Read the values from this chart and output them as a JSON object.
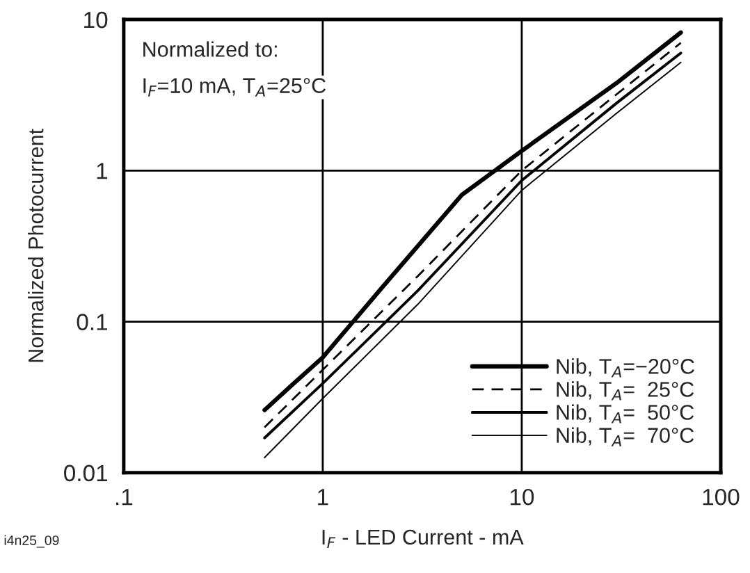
{
  "chart_data": {
    "type": "line",
    "xlabel": "I$_{F}$ - LED Current - mA",
    "ylabel": "Normalized Photocurrent",
    "annotations": [
      "Normalized to:",
      "I$_{F}$=10 mA, T$_{A}$=25°C",
      "i4n25_09"
    ],
    "log": "xy",
    "xlim": [
      0.1,
      100
    ],
    "ylim": [
      0.01,
      10
    ],
    "xticks": [
      {
        "value": 0.1,
        "label": ".1"
      },
      1,
      10,
      100
    ],
    "yticks": [
      0.01,
      0.1,
      1,
      10
    ],
    "grid": true,
    "legend": "bottom right",
    "series": [
      {
        "name": "Nib, T$_{A}$=−20°C",
        "color": "#000000",
        "line_style": "solid",
        "x": [
          0.51,
          0.7,
          1,
          2,
          5,
          10,
          30,
          63
        ],
        "values": [
          0.026,
          0.038,
          0.058,
          0.17,
          0.69,
          1.35,
          3.8,
          8.2
        ]
      },
      {
        "name": "Nib, T$_{A}$=  25°C",
        "color": "#000000",
        "line_style": "dashed",
        "x": [
          0.51,
          1,
          3,
          10,
          30,
          63
        ],
        "values": [
          0.02,
          0.048,
          0.2,
          1.0,
          3.2,
          7.0
        ]
      },
      {
        "name": "Nib, T$_{A}$=  50°C",
        "color": "#000000",
        "line_style": "solid",
        "x": [
          0.51,
          1,
          3,
          10,
          30,
          63
        ],
        "values": [
          0.017,
          0.039,
          0.16,
          0.86,
          2.8,
          6.0
        ]
      },
      {
        "name": "Nib, T$_{A}$=  70°C",
        "color": "#000000",
        "line_style": "solid",
        "x": [
          0.51,
          1,
          3,
          10,
          30,
          63
        ],
        "values": [
          0.0126,
          0.031,
          0.13,
          0.74,
          2.4,
          5.2
        ]
      }
    ]
  }
}
